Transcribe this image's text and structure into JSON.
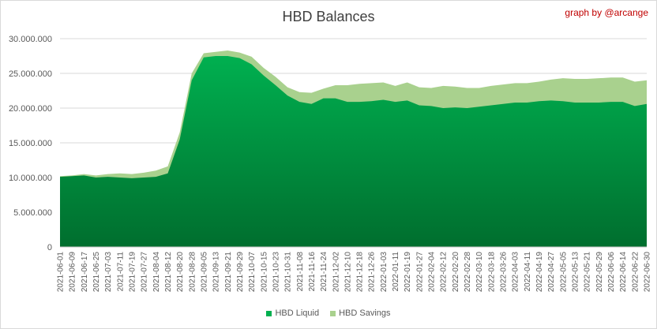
{
  "chart_data": {
    "type": "area",
    "title": "HBD Balances",
    "credit": "graph by @arcange",
    "ylim": [
      0,
      30000000
    ],
    "y_ticks": [
      "0",
      "5.000.000",
      "10.000.000",
      "15.000.000",
      "20.000.000",
      "25.000.000",
      "30.000.000"
    ],
    "grid": true,
    "legend_position": "bottom",
    "x": [
      "2021-06-01",
      "2021-06-09",
      "2021-06-17",
      "2021-06-25",
      "2021-07-03",
      "2021-07-11",
      "2021-07-19",
      "2021-07-27",
      "2021-08-04",
      "2021-08-12",
      "2021-08-20",
      "2021-08-28",
      "2021-09-05",
      "2021-09-13",
      "2021-09-21",
      "2021-09-29",
      "2021-10-07",
      "2021-10-15",
      "2021-10-23",
      "2021-10-31",
      "2021-11-08",
      "2021-11-16",
      "2021-11-24",
      "2021-12-02",
      "2021-12-10",
      "2021-12-18",
      "2021-12-26",
      "2022-01-03",
      "2022-01-11",
      "2022-01-19",
      "2022-01-27",
      "2022-02-04",
      "2022-02-12",
      "2022-02-20",
      "2022-02-28",
      "2022-03-10",
      "2022-03-18",
      "2022-03-26",
      "2022-04-03",
      "2022-04-11",
      "2022-04-19",
      "2022-04-27",
      "2022-05-05",
      "2022-05-13",
      "2022-05-21",
      "2022-05-29",
      "2022-06-06",
      "2022-06-14",
      "2022-06-22",
      "2022-06-30"
    ],
    "series": [
      {
        "name": "HBD Liquid",
        "color_top": "#00b050",
        "color_bottom": "#006e2e",
        "values": [
          10100000,
          10200000,
          10300000,
          10000000,
          10100000,
          10000000,
          9900000,
          10000000,
          10100000,
          10600000,
          15500000,
          24000000,
          27300000,
          27500000,
          27500000,
          27200000,
          26300000,
          24700000,
          23300000,
          21800000,
          20900000,
          20600000,
          21400000,
          21400000,
          20900000,
          20900000,
          21000000,
          21200000,
          20900000,
          21100000,
          20400000,
          20300000,
          20000000,
          20100000,
          20000000,
          20200000,
          20400000,
          20600000,
          20800000,
          20800000,
          21000000,
          21100000,
          21000000,
          20800000,
          20800000,
          20800000,
          20900000,
          20900000,
          20300000,
          20600000
        ]
      },
      {
        "name": "HBD Savings",
        "color": "#a9d18e",
        "values": [
          10200000,
          10300000,
          10500000,
          10300000,
          10500000,
          10600000,
          10500000,
          10700000,
          11000000,
          11600000,
          16500000,
          25000000,
          27900000,
          28100000,
          28300000,
          28000000,
          27400000,
          25800000,
          24500000,
          23000000,
          22300000,
          22200000,
          22800000,
          23300000,
          23300000,
          23500000,
          23600000,
          23700000,
          23200000,
          23700000,
          23000000,
          22900000,
          23200000,
          23100000,
          22900000,
          22900000,
          23200000,
          23400000,
          23600000,
          23600000,
          23800000,
          24100000,
          24300000,
          24200000,
          24200000,
          24300000,
          24400000,
          24400000,
          23800000,
          24000000
        ]
      }
    ]
  }
}
